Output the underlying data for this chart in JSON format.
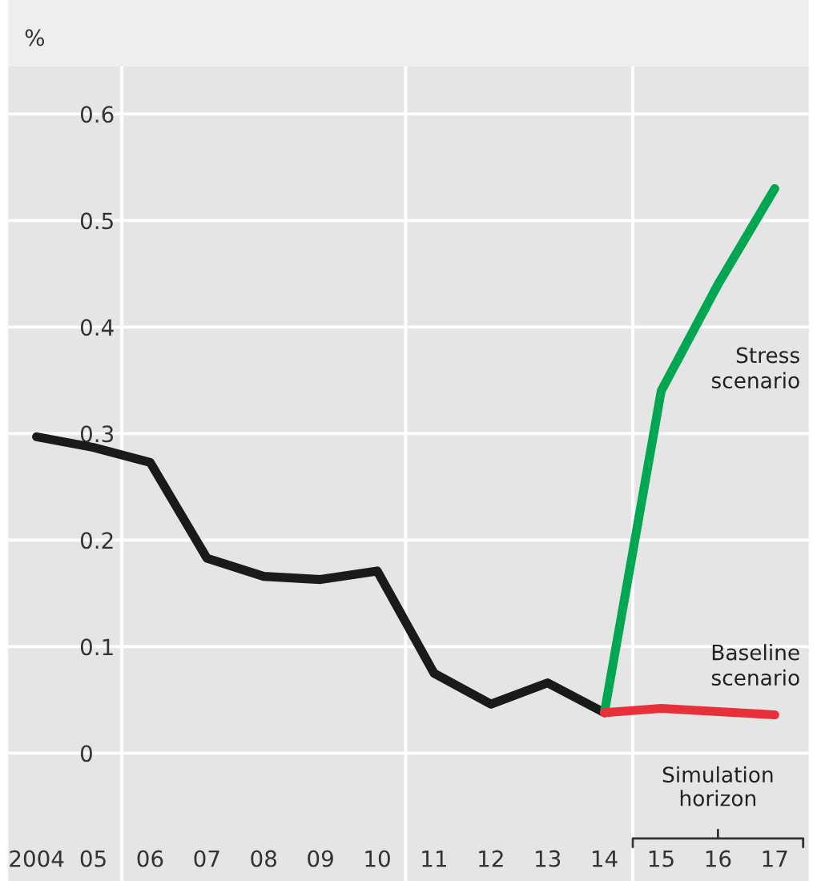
{
  "chart_data": {
    "type": "line",
    "ylabel": "%",
    "x": [
      2004,
      2005,
      2006,
      2007,
      2008,
      2009,
      2010,
      2011,
      2012,
      2013,
      2014,
      2015,
      2016,
      2017
    ],
    "series": [
      {
        "color": "#1a1a1a",
        "values": [
          0.297,
          0.287,
          0.273,
          0.183,
          0.166,
          0.163,
          0.171,
          0.075,
          0.046,
          0.066,
          0.038,
          null,
          null,
          null
        ]
      },
      {
        "name": "Stress scenario",
        "color": "#00a651",
        "values": [
          null,
          null,
          null,
          null,
          null,
          null,
          null,
          null,
          null,
          null,
          0.038,
          0.34,
          0.44,
          0.53
        ]
      },
      {
        "name": "Baseline scenario",
        "color": "#e8303a",
        "values": [
          null,
          null,
          null,
          null,
          null,
          null,
          null,
          null,
          null,
          null,
          0.038,
          0.042,
          0.039,
          0.036
        ]
      }
    ],
    "xlim": [
      2003.5,
      2017.6
    ],
    "xticks": [
      {
        "value": 2004,
        "label": "2004"
      },
      {
        "value": 2005,
        "label": "05"
      },
      {
        "value": 2006,
        "label": "06"
      },
      {
        "value": 2007,
        "label": "07"
      },
      {
        "value": 2008,
        "label": "08"
      },
      {
        "value": 2009,
        "label": "09"
      },
      {
        "value": 2010,
        "label": "10"
      },
      {
        "value": 2011,
        "label": "11"
      },
      {
        "value": 2012,
        "label": "12"
      },
      {
        "value": 2013,
        "label": "13"
      },
      {
        "value": 2014,
        "label": "14"
      },
      {
        "value": 2015,
        "label": "15"
      },
      {
        "value": 2016,
        "label": "16"
      },
      {
        "value": 2017,
        "label": "17"
      }
    ],
    "ylim": [
      -0.12,
      0.645
    ],
    "yticks": [
      0,
      0.1,
      0.2,
      0.3,
      0.4,
      0.5,
      0.6
    ],
    "grid": "y",
    "ref_lines": [
      {
        "axis": "x",
        "value": 2005.5,
        "color": "#ffffff"
      },
      {
        "axis": "x",
        "value": 2010.5,
        "color": "#ffffff"
      },
      {
        "axis": "x",
        "value": 2014.5,
        "color": "#ffffff"
      }
    ],
    "annotations": [
      "Simulation horizon"
    ],
    "marker": "none",
    "line_style": "solid"
  }
}
